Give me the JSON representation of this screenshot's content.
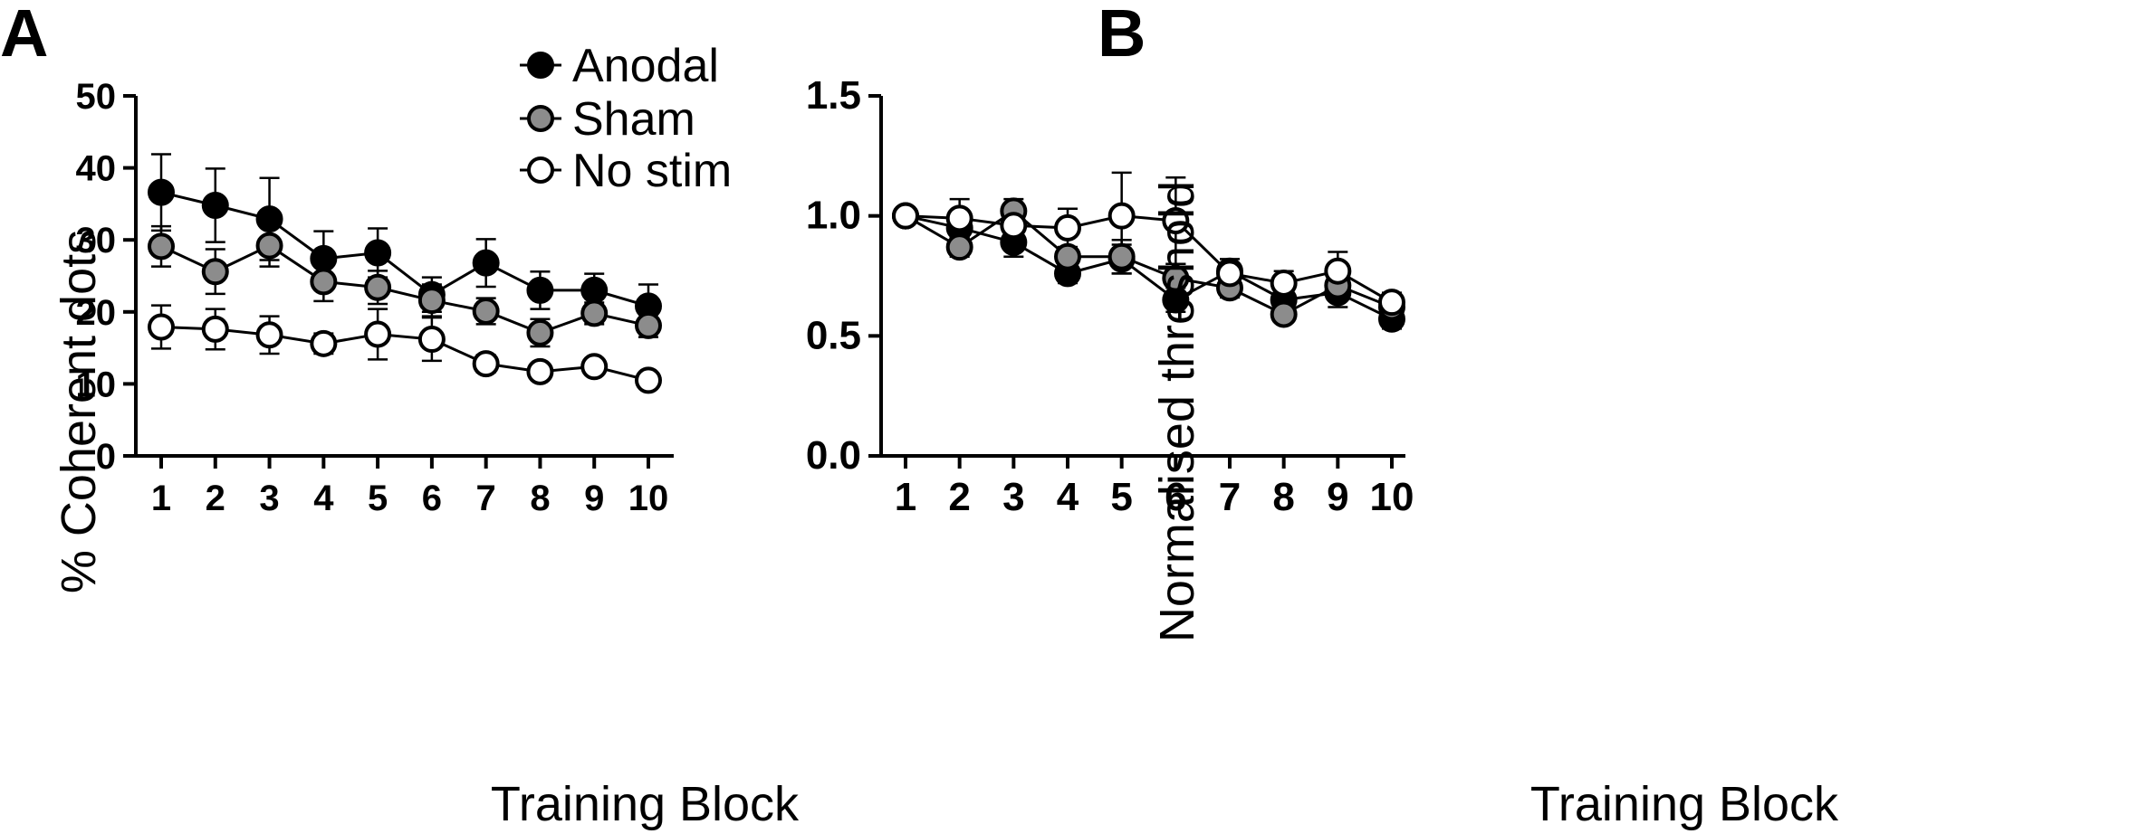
{
  "panel_labels": {
    "a": "A",
    "b": "B"
  },
  "colors": {
    "anodal_fill": "#000000",
    "sham_fill": "#8c8c8c",
    "nostim_fill": "#ffffff",
    "stroke": "#000000"
  },
  "chart_data": [
    {
      "panel": "A",
      "type": "line",
      "title": "",
      "xlabel": "Training Block",
      "ylabel": "% Coherent dots",
      "ylim": [
        0,
        50
      ],
      "xlim": [
        1,
        10
      ],
      "x_ticks": [
        "1",
        "2",
        "3",
        "4",
        "5",
        "6",
        "7",
        "8",
        "9",
        "10"
      ],
      "y_ticks": [
        "0",
        "10",
        "20",
        "30",
        "40",
        "50"
      ],
      "y_tick_values": [
        0,
        10,
        20,
        30,
        40,
        50
      ],
      "grid": false,
      "legend_position": "top-right",
      "legend": [
        "Anodal",
        "Sham",
        "No stim"
      ],
      "x": [
        1,
        2,
        3,
        4,
        5,
        6,
        7,
        8,
        9,
        10
      ],
      "series": [
        {
          "name": "Anodal",
          "marker": "filled-black",
          "values": [
            36.6,
            34.8,
            32.9,
            27.4,
            28.2,
            22.4,
            26.8,
            23.0,
            23.0,
            20.8
          ],
          "error": [
            5.3,
            5.1,
            5.7,
            3.8,
            3.4,
            2.4,
            3.3,
            2.6,
            2.3,
            3.0
          ]
        },
        {
          "name": "Sham",
          "marker": "filled-grey",
          "values": [
            29.1,
            25.6,
            29.2,
            24.2,
            23.4,
            21.6,
            20.1,
            17.1,
            19.8,
            18.1
          ],
          "error": [
            2.8,
            3.1,
            2.9,
            2.7,
            2.3,
            2.2,
            1.8,
            1.9,
            1.5,
            1.6
          ]
        },
        {
          "name": "No stim",
          "marker": "open",
          "values": [
            17.9,
            17.6,
            16.8,
            15.6,
            16.9,
            16.2,
            12.8,
            11.7,
            12.4,
            10.5
          ],
          "error": [
            3.0,
            2.8,
            2.6,
            1.4,
            3.5,
            3.0,
            1.2,
            0.8,
            0.9,
            0.8
          ]
        }
      ]
    },
    {
      "panel": "B",
      "type": "line",
      "title": "",
      "xlabel": "Training Block",
      "ylabel": "Normalised threshold",
      "ylim": [
        0,
        1.5
      ],
      "xlim": [
        1,
        10
      ],
      "x_ticks": [
        "1",
        "2",
        "3",
        "4",
        "5",
        "6",
        "7",
        "8",
        "9",
        "10"
      ],
      "y_ticks": [
        "0.0",
        "0.5",
        "1.0",
        "1.5"
      ],
      "y_tick_values": [
        0,
        0.5,
        1.0,
        1.5
      ],
      "grid": false,
      "x": [
        1,
        2,
        3,
        4,
        5,
        6,
        7,
        8,
        9,
        10
      ],
      "series": [
        {
          "name": "Anodal",
          "marker": "filled-black",
          "values": [
            1.0,
            0.95,
            0.89,
            0.76,
            0.82,
            0.65,
            0.77,
            0.65,
            0.68,
            0.57
          ],
          "error": [
            0,
            0.04,
            0.06,
            0.04,
            0.06,
            0.05,
            0.05,
            0.04,
            0.06,
            0.04
          ]
        },
        {
          "name": "Sham",
          "marker": "filled-grey",
          "values": [
            1.0,
            0.87,
            1.02,
            0.83,
            0.83,
            0.74,
            0.7,
            0.59,
            0.71,
            0.62
          ],
          "error": [
            0,
            0.04,
            0.05,
            0.04,
            0.07,
            0.06,
            0.04,
            0.02,
            0.04,
            0.03
          ]
        },
        {
          "name": "No stim",
          "marker": "open",
          "values": [
            1.0,
            0.99,
            0.96,
            0.95,
            1.0,
            0.98,
            0.76,
            0.72,
            0.77,
            0.64
          ],
          "error": [
            0,
            0.08,
            0.08,
            0.08,
            0.18,
            0.18,
            0.04,
            0.05,
            0.08,
            0.04
          ]
        }
      ]
    }
  ]
}
